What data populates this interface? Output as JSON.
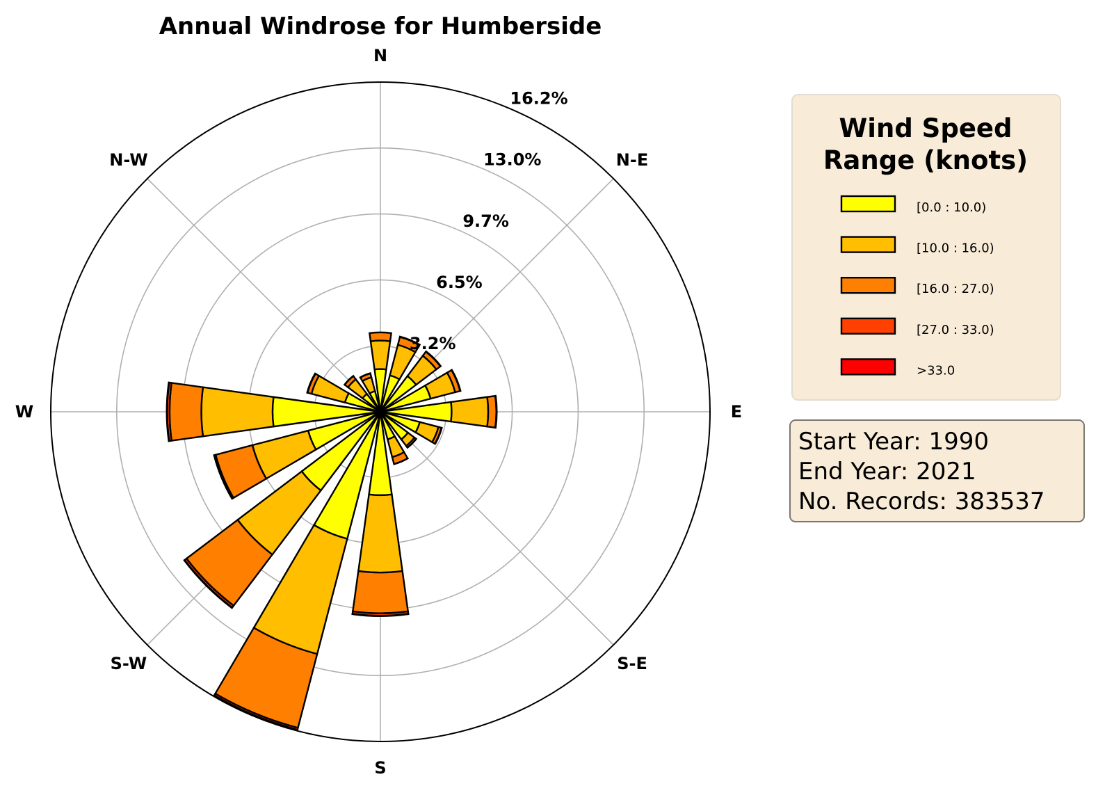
{
  "chart_data": {
    "type": "windrose",
    "title": "Annual Windrose for Humberside",
    "directions": [
      "N",
      "NNE",
      "NE",
      "ENE",
      "E",
      "ESE",
      "SE",
      "SSE",
      "S",
      "SSW",
      "SW",
      "WSW",
      "W",
      "WNW",
      "NW",
      "NNW"
    ],
    "direction_labels": [
      "N",
      "N-E",
      "E",
      "S-E",
      "S",
      "S-W",
      "W",
      "N-W"
    ],
    "radial_ticks": [
      3.24,
      6.48,
      9.72,
      12.96,
      16.2
    ],
    "radial_tick_labels": [
      "3.2%",
      "6.5%",
      "9.7%",
      "13.0%",
      "16.2%"
    ],
    "rmax": 16.2,
    "grid": true,
    "stacked": true,
    "legend": {
      "title": "Wind Speed Range (knots)",
      "title_lines": [
        "Wind Speed",
        "Range (knots)"
      ],
      "placement": "right"
    },
    "series": [
      {
        "name": "[0.0 : 10.0)",
        "color": "#ffff00",
        "values": [
          2.1,
          1.85,
          2.2,
          2.55,
          3.5,
          2.0,
          1.7,
          1.4,
          4.1,
          6.45,
          4.85,
          3.67,
          5.3,
          1.8,
          1.1,
          1.05
        ]
      },
      {
        "name": "[10.0 : 16.0)",
        "color": "#ffbf00",
        "values": [
          1.4,
          1.55,
          1.25,
          1.25,
          1.8,
          0.95,
          0.4,
          0.9,
          3.8,
          5.85,
          3.95,
          2.83,
          3.5,
          1.7,
          0.9,
          0.7
        ]
      },
      {
        "name": "[16.0 : 27.0)",
        "color": "#ff8000",
        "values": [
          0.4,
          0.4,
          0.25,
          0.25,
          0.4,
          0.15,
          0.1,
          0.35,
          2.0,
          3.75,
          3.15,
          1.87,
          1.56,
          0.2,
          0.2,
          0.2
        ]
      },
      {
        "name": "[27.0 : 33.0)",
        "color": "#ff4000",
        "values": [
          0.0,
          0.02,
          0.02,
          0.02,
          0.02,
          0.02,
          0.01,
          0.01,
          0.12,
          0.1,
          0.12,
          0.07,
          0.12,
          0.02,
          0.01,
          0.01
        ]
      },
      {
        "name": ">33.0",
        "color": "#ff0000",
        "values": [
          0,
          0,
          0,
          0,
          0,
          0,
          0,
          0,
          0.02,
          0.01,
          0.02,
          0.01,
          0.02,
          0,
          0,
          0
        ]
      }
    ]
  },
  "info": {
    "start": "Start Year: 1990",
    "end": "End Year: 2021",
    "records": "No. Records: 383537"
  }
}
